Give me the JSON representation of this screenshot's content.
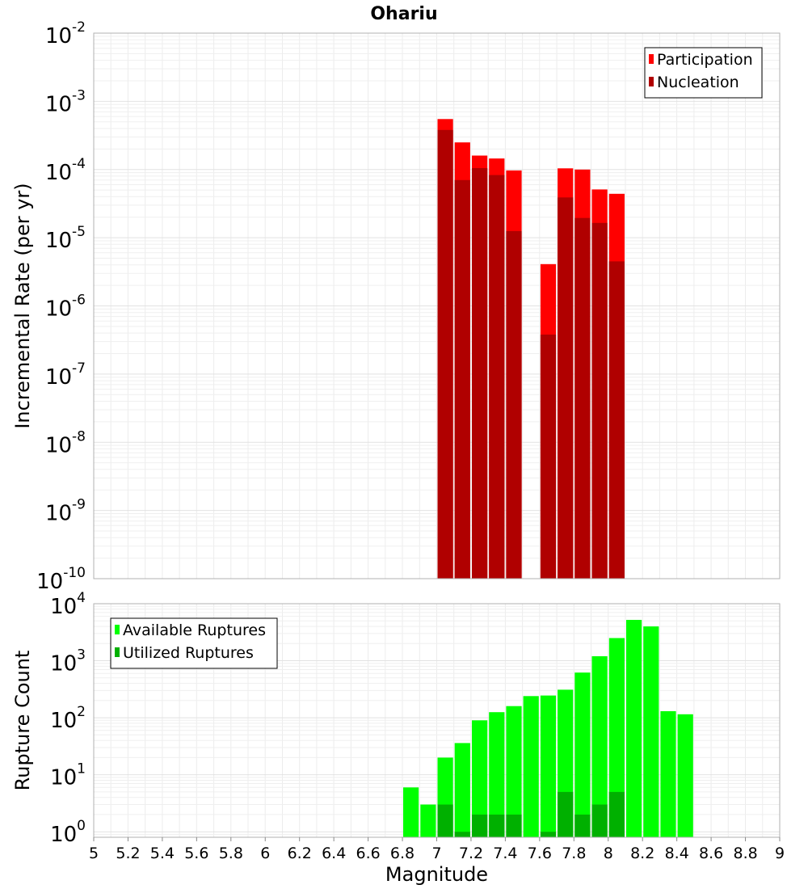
{
  "chart_data": [
    {
      "type": "bar",
      "title": "Ohariu",
      "xlabel": "",
      "ylabel": "Incremental Rate (per yr)",
      "yscale": "log",
      "ylim": [
        1e-10,
        0.01
      ],
      "xlim": [
        5,
        9
      ],
      "bar_width": 0.1,
      "grid": true,
      "legend_position": "top-right",
      "y_ticks": [
        {
          "base": "10",
          "exp": "-10"
        },
        {
          "base": "10",
          "exp": "-9"
        },
        {
          "base": "10",
          "exp": "-8"
        },
        {
          "base": "10",
          "exp": "-7"
        },
        {
          "base": "10",
          "exp": "-6"
        },
        {
          "base": "10",
          "exp": "-5"
        },
        {
          "base": "10",
          "exp": "-4"
        },
        {
          "base": "10",
          "exp": "-3"
        },
        {
          "base": "10",
          "exp": "-2"
        }
      ],
      "x": [
        7.05,
        7.15,
        7.25,
        7.35,
        7.45,
        7.65,
        7.75,
        7.85,
        7.95,
        8.05
      ],
      "series": [
        {
          "name": "Participation",
          "color": "#ff0000",
          "values": [
            0.00055,
            0.00025,
            0.00016,
            0.000145,
            9.7e-05,
            4.1e-06,
            0.000104,
            0.0001,
            5.1e-05,
            4.4e-05
          ]
        },
        {
          "name": "Nucleation",
          "color": "#b00000",
          "values": [
            0.00038,
            7e-05,
            0.000105,
            8.3e-05,
            1.25e-05,
            3.8e-07,
            3.9e-05,
            1.95e-05,
            1.65e-05,
            4.5e-06
          ]
        }
      ]
    },
    {
      "type": "bar",
      "title": "",
      "xlabel": "Magnitude",
      "ylabel": "Rupture Count",
      "yscale": "log",
      "ylim": [
        0.8,
        10000
      ],
      "xlim": [
        5,
        9
      ],
      "bar_width": 0.1,
      "grid": true,
      "legend_position": "top-left",
      "x_tick_labels": [
        "5",
        "5.2",
        "5.4",
        "5.6",
        "5.8",
        "6",
        "6.2",
        "6.4",
        "6.6",
        "6.8",
        "7",
        "7.2",
        "7.4",
        "7.6",
        "7.8",
        "8",
        "8.2",
        "8.4",
        "8.6",
        "8.8",
        "9"
      ],
      "y_ticks": [
        {
          "base": "10",
          "exp": "0"
        },
        {
          "base": "10",
          "exp": "1"
        },
        {
          "base": "10",
          "exp": "2"
        },
        {
          "base": "10",
          "exp": "3"
        },
        {
          "base": "10",
          "exp": "4"
        }
      ],
      "x": [
        6.85,
        6.95,
        7.05,
        7.15,
        7.25,
        7.35,
        7.45,
        7.55,
        7.65,
        7.75,
        7.85,
        7.95,
        8.05,
        8.15,
        8.25,
        8.35,
        8.45
      ],
      "series": [
        {
          "name": "Available Ruptures",
          "color": "#00ff00",
          "values": [
            6,
            3,
            20,
            36,
            90,
            125,
            160,
            240,
            245,
            310,
            620,
            1200,
            2500,
            5200,
            4000,
            130,
            115
          ]
        },
        {
          "name": "Utilized Ruptures",
          "color": "#00b000",
          "values": [
            0,
            0,
            3,
            1,
            2,
            2,
            2,
            0,
            1,
            5,
            2,
            3,
            5,
            0,
            0,
            0,
            0
          ]
        }
      ]
    }
  ]
}
